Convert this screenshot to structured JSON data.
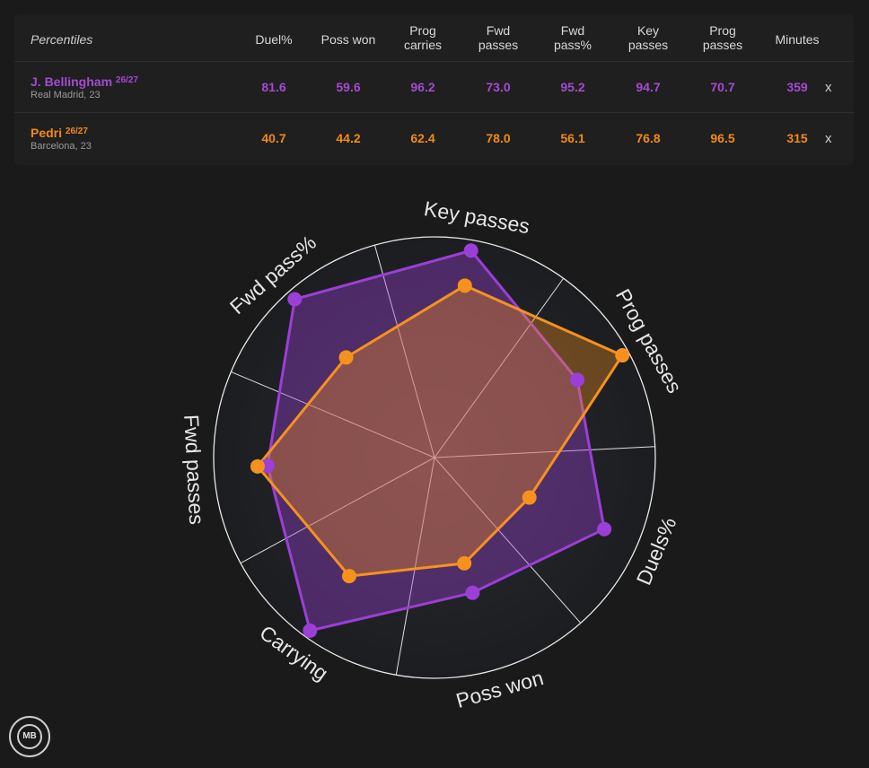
{
  "table": {
    "title": "Percentiles",
    "columns": [
      {
        "lines": [
          "Duel%"
        ]
      },
      {
        "lines": [
          "Poss won"
        ]
      },
      {
        "lines": [
          "Prog",
          "carries"
        ]
      },
      {
        "lines": [
          "Fwd",
          "passes"
        ]
      },
      {
        "lines": [
          "Fwd",
          "pass%"
        ]
      },
      {
        "lines": [
          "Key",
          "passes"
        ]
      },
      {
        "lines": [
          "Prog",
          "passes"
        ]
      },
      {
        "lines": [
          "Minutes"
        ]
      }
    ],
    "players": [
      {
        "name": "J. Bellingham",
        "season": "26/27",
        "team": "Real Madrid, 23",
        "values": [
          "81.6",
          "59.6",
          "96.2",
          "73.0",
          "95.2",
          "94.7",
          "70.7",
          "359"
        ],
        "remove_label": "x"
      },
      {
        "name": "Pedri",
        "season": "26/27",
        "team": "Barcelona, 23",
        "values": [
          "40.7",
          "44.2",
          "62.4",
          "78.0",
          "56.1",
          "76.8",
          "96.5",
          "315"
        ],
        "remove_label": "x"
      }
    ]
  },
  "colors": {
    "player1": "#9b3fd6",
    "player2": "#f5921e",
    "background": "#1a1a1a",
    "panel": "#1f1f1f"
  },
  "chart_data": {
    "type": "radar",
    "axes": [
      "Key passes",
      "Prog passes",
      "Duels%",
      "Poss won",
      "Carrying",
      "Fwd passes",
      "Fwd pass%"
    ],
    "range": [
      0,
      100
    ],
    "series": [
      {
        "name": "J. Bellingham",
        "values": [
          94.7,
          70.7,
          81.6,
          59.6,
          96.2,
          73.0,
          95.2
        ]
      },
      {
        "name": "Pedri",
        "values": [
          76.8,
          96.5,
          40.7,
          44.2,
          62.4,
          78.0,
          56.1
        ]
      }
    ]
  },
  "logo": {
    "text": "MB"
  }
}
